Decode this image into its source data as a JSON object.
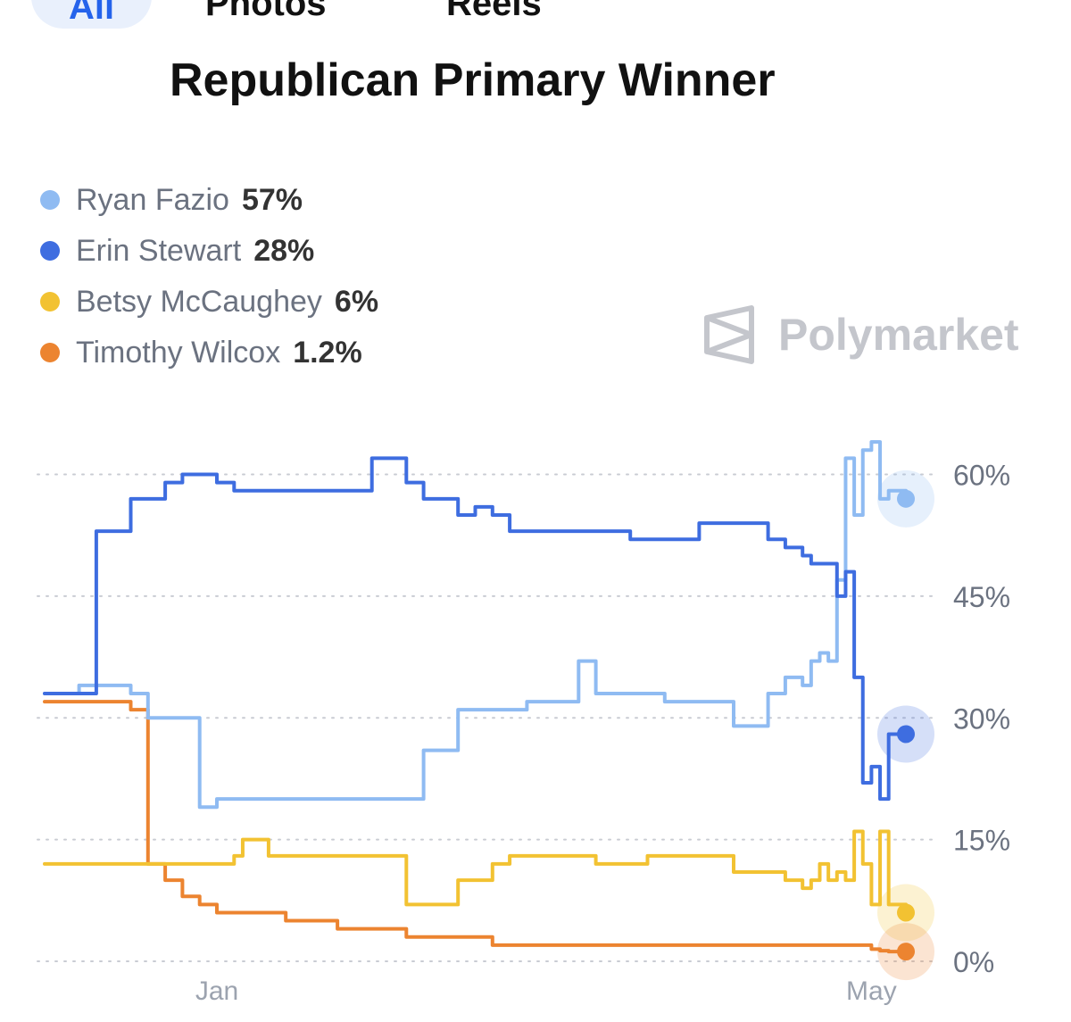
{
  "tabs": [
    {
      "label": "All",
      "active": true
    },
    {
      "label": "Photos"
    },
    {
      "label": "Reels"
    }
  ],
  "title": "Republican Primary Winner",
  "watermark": "Polymarket",
  "legend": [
    {
      "name": "Ryan Fazio",
      "pct": "57%",
      "color": "#8fbbf2"
    },
    {
      "name": "Erin Stewart",
      "pct": "28%",
      "color": "#3e6de0"
    },
    {
      "name": "Betsy McCaughey",
      "pct": "6%",
      "color": "#f2c232"
    },
    {
      "name": "Timothy Wilcox",
      "pct": "1.2%",
      "color": "#ec8430"
    }
  ],
  "chart_data": {
    "type": "line",
    "title": "Republican Primary Winner",
    "xlabel": "",
    "ylabel": "",
    "x_ticks": [
      "Jan",
      "May"
    ],
    "y_ticks": [
      "0%",
      "15%",
      "30%",
      "45%",
      "60%"
    ],
    "ylim": [
      0,
      66
    ],
    "grid": true,
    "legend_position": "top-left",
    "x": [
      0,
      4,
      6,
      10,
      12,
      14,
      16,
      18,
      20,
      22,
      23,
      26,
      28,
      30,
      34,
      38,
      42,
      44,
      48,
      50,
      52,
      54,
      56,
      60,
      62,
      64,
      66,
      68,
      70,
      72,
      76,
      80,
      84,
      86,
      88,
      89,
      90,
      91,
      92,
      93,
      94,
      95,
      96,
      97,
      98,
      100
    ],
    "series": [
      {
        "name": "Ryan Fazio",
        "color": "#8fbbf2",
        "values": [
          33,
          34,
          34,
          33,
          30,
          30,
          30,
          19,
          20,
          20,
          20,
          20,
          20,
          20,
          20,
          20,
          20,
          26,
          31,
          31,
          31,
          31,
          32,
          32,
          37,
          33,
          33,
          33,
          33,
          32,
          32,
          29,
          33,
          35,
          34,
          37,
          38,
          37,
          47,
          62,
          55,
          63,
          64,
          57,
          58,
          57
        ]
      },
      {
        "name": "Erin Stewart",
        "color": "#3e6de0",
        "values": [
          33,
          33,
          53,
          57,
          57,
          59,
          60,
          60,
          59,
          58,
          58,
          58,
          58,
          58,
          58,
          62,
          59,
          57,
          55,
          56,
          55,
          53,
          53,
          53,
          53,
          53,
          53,
          52,
          52,
          52,
          54,
          54,
          52,
          51,
          50,
          49,
          49,
          49,
          45,
          48,
          35,
          22,
          24,
          20,
          28,
          28
        ]
      },
      {
        "name": "Betsy McCaughey",
        "color": "#f2c232",
        "values": [
          12,
          12,
          12,
          12,
          12,
          12,
          12,
          12,
          12,
          13,
          15,
          13,
          13,
          13,
          13,
          13,
          7,
          7,
          10,
          10,
          12,
          13,
          13,
          13,
          13,
          12,
          12,
          12,
          13,
          13,
          13,
          11,
          11,
          10,
          9,
          10,
          12,
          10,
          11,
          10,
          16,
          12,
          7,
          16,
          7,
          6
        ]
      },
      {
        "name": "Timothy Wilcox",
        "color": "#ec8430",
        "values": [
          32,
          32,
          32,
          31,
          12,
          10,
          8,
          7,
          6,
          6,
          6,
          6,
          5,
          5,
          4,
          4,
          3,
          3,
          3,
          3,
          2,
          2,
          2,
          2,
          2,
          2,
          2,
          2,
          2,
          2,
          2,
          2,
          2,
          2,
          2,
          2,
          2,
          2,
          2,
          2,
          2,
          2,
          1.5,
          1.3,
          1.2,
          1.2
        ]
      }
    ]
  }
}
